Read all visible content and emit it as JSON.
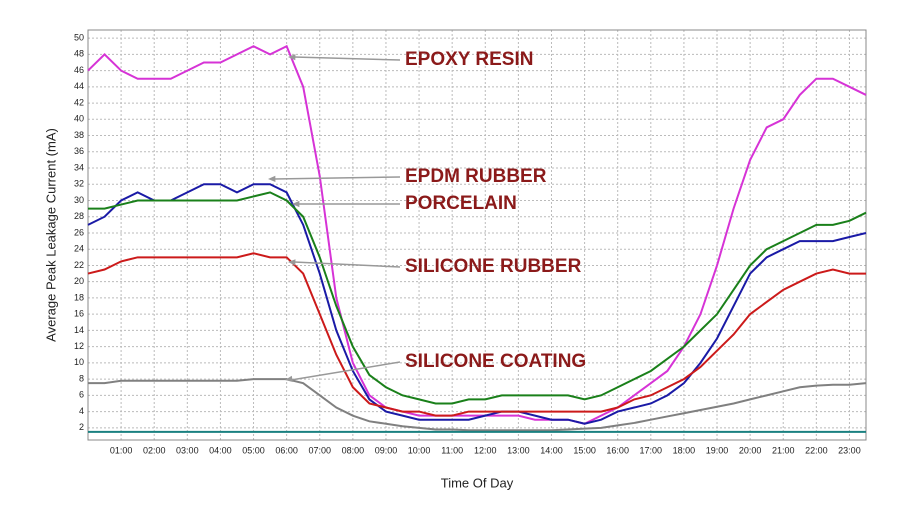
{
  "chart_data": {
    "type": "line",
    "x_label": "Time Of Day",
    "y_label": "Average Peak Leakage Current (mA)",
    "x": [
      0,
      0.5,
      1,
      1.5,
      2,
      2.5,
      3,
      3.5,
      4,
      4.5,
      5,
      5.5,
      6,
      6.5,
      7,
      7.5,
      8,
      8.5,
      9,
      9.5,
      10,
      10.5,
      11,
      11.5,
      12,
      12.5,
      13,
      13.5,
      14,
      14.5,
      15,
      15.5,
      16,
      16.5,
      17,
      17.5,
      18,
      18.5,
      19,
      19.5,
      20,
      20.5,
      21,
      21.5,
      22,
      22.5,
      23,
      23.5
    ],
    "series": [
      {
        "name": "EPOXY RESIN",
        "color": "#d633d6",
        "values": [
          46,
          48,
          46,
          45,
          45,
          45,
          46,
          47,
          47,
          48,
          49,
          48,
          49,
          44,
          33,
          18,
          10,
          6,
          4.5,
          4,
          3.5,
          3.5,
          3.5,
          3.5,
          3.5,
          3.5,
          3.5,
          3,
          3,
          3,
          2.5,
          3.5,
          4.5,
          6,
          7.5,
          9,
          12,
          16,
          22,
          29,
          35,
          39,
          40,
          43,
          45,
          45,
          44,
          43
        ]
      },
      {
        "name": "EPDM RUBBER",
        "color": "#1a1aa6",
        "values": [
          27,
          28,
          30,
          31,
          30,
          30,
          31,
          32,
          32,
          31,
          32,
          32,
          31,
          27,
          21,
          14,
          9,
          5.5,
          4,
          3.5,
          3,
          3,
          3,
          3,
          3.5,
          4,
          4,
          3.5,
          3,
          3,
          2.5,
          3,
          4,
          4.5,
          5,
          6,
          7.5,
          10,
          13,
          17,
          21,
          23,
          24,
          25,
          25,
          25,
          25.5,
          26
        ]
      },
      {
        "name": "PORCELAIN",
        "color": "#1a801a",
        "values": [
          29,
          29,
          29.5,
          30,
          30,
          30,
          30,
          30,
          30,
          30,
          30.5,
          31,
          30,
          28,
          23,
          17,
          12,
          8.5,
          7,
          6,
          5.5,
          5,
          5,
          5.5,
          5.5,
          6,
          6,
          6,
          6,
          6,
          5.5,
          6,
          7,
          8,
          9,
          10.5,
          12,
          14,
          16,
          19,
          22,
          24,
          25,
          26,
          27,
          27,
          27.5,
          28.5
        ]
      },
      {
        "name": "SILICONE RUBBER",
        "color": "#cc1a1a",
        "values": [
          21,
          21.5,
          22.5,
          23,
          23,
          23,
          23,
          23,
          23,
          23,
          23.5,
          23,
          23,
          21,
          16,
          11,
          7,
          5,
          4.5,
          4,
          4,
          3.5,
          3.5,
          4,
          4,
          4,
          4,
          4,
          4,
          4,
          4,
          4,
          4.5,
          5.5,
          6,
          7,
          8,
          9.5,
          11.5,
          13.5,
          16,
          17.5,
          19,
          20,
          21,
          21.5,
          21,
          21
        ]
      },
      {
        "name": "SILICONE COATING",
        "color": "#808080",
        "values": [
          7.5,
          7.5,
          7.8,
          7.8,
          7.8,
          7.8,
          7.8,
          7.8,
          7.8,
          7.8,
          8,
          8,
          8,
          7.5,
          6,
          4.5,
          3.5,
          2.8,
          2.5,
          2.2,
          2,
          1.8,
          1.8,
          1.7,
          1.7,
          1.7,
          1.7,
          1.7,
          1.7,
          1.8,
          1.9,
          2,
          2.3,
          2.6,
          3,
          3.4,
          3.8,
          4.2,
          4.6,
          5,
          5.5,
          6,
          6.5,
          7,
          7.2,
          7.3,
          7.3,
          7.5
        ]
      },
      {
        "color": "#1a8080",
        "values": [
          1.5,
          1.5,
          1.5,
          1.5,
          1.5,
          1.5,
          1.5,
          1.5,
          1.5,
          1.5,
          1.5,
          1.5,
          1.5,
          1.5,
          1.5,
          1.5,
          1.5,
          1.5,
          1.5,
          1.5,
          1.5,
          1.5,
          1.5,
          1.5,
          1.5,
          1.5,
          1.5,
          1.5,
          1.5,
          1.5,
          1.5,
          1.5,
          1.5,
          1.5,
          1.5,
          1.5,
          1.5,
          1.5,
          1.5,
          1.5,
          1.5,
          1.5,
          1.5,
          1.5,
          1.5,
          1.5,
          1.5,
          1.5
        ]
      }
    ],
    "xlim": [
      0,
      23.5
    ],
    "xticks": [
      {
        "value": 1,
        "label": "01:00"
      },
      {
        "value": 2,
        "label": "02:00"
      },
      {
        "value": 3,
        "label": "03:00"
      },
      {
        "value": 4,
        "label": "04:00"
      },
      {
        "value": 5,
        "label": "05:00"
      },
      {
        "value": 6,
        "label": "06:00"
      },
      {
        "value": 7,
        "label": "07:00"
      },
      {
        "value": 8,
        "label": "08:00"
      },
      {
        "value": 9,
        "label": "09:00"
      },
      {
        "value": 10,
        "label": "10:00"
      },
      {
        "value": 11,
        "label": "11:00"
      },
      {
        "value": 12,
        "label": "12:00"
      },
      {
        "value": 13,
        "label": "13:00"
      },
      {
        "value": 14,
        "label": "14:00"
      },
      {
        "value": 15,
        "label": "15:00"
      },
      {
        "value": 16,
        "label": "16:00"
      },
      {
        "value": 17,
        "label": "17:00"
      },
      {
        "value": 18,
        "label": "18:00"
      },
      {
        "value": 19,
        "label": "19:00"
      },
      {
        "value": 20,
        "label": "20:00"
      },
      {
        "value": 21,
        "label": "21:00"
      },
      {
        "value": 22,
        "label": "22:00"
      },
      {
        "value": 23,
        "label": "23:00"
      }
    ],
    "ylim": [
      0.5,
      51
    ],
    "yticks": [
      2,
      4,
      6,
      8,
      10,
      12,
      14,
      16,
      18,
      20,
      22,
      24,
      26,
      28,
      30,
      32,
      34,
      36,
      38,
      40,
      42,
      44,
      46,
      48,
      50
    ],
    "grid": true
  }
}
